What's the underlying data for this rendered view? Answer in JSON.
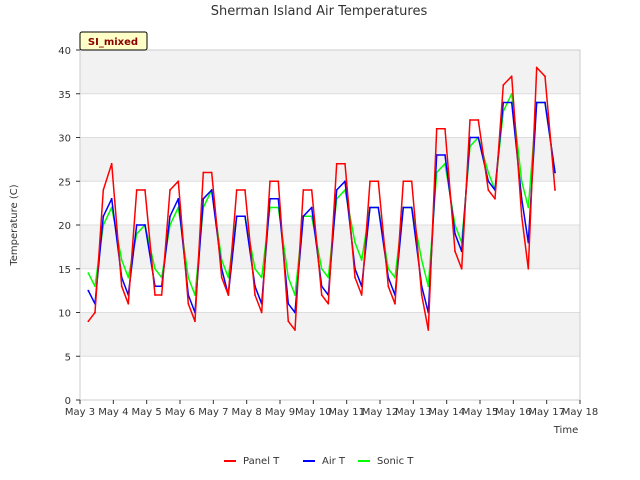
{
  "chart_data": {
    "type": "line",
    "title": "Sherman Island Air Temperatures",
    "xlabel": "Time",
    "ylabel": "Temperature (C)",
    "xlim": [
      3,
      18
    ],
    "ylim": [
      0,
      40
    ],
    "y_ticks": [
      0,
      5,
      10,
      15,
      20,
      25,
      30,
      35,
      40
    ],
    "x_ticks": [
      3,
      4,
      5,
      6,
      7,
      8,
      9,
      10,
      11,
      12,
      13,
      14,
      15,
      16,
      17,
      18
    ],
    "x_tick_labels": [
      "May 3",
      "May 4",
      "May 5",
      "May 6",
      "May 7",
      "May 8",
      "May 9",
      "May 10",
      "May 11",
      "May 12",
      "May 13",
      "May 14",
      "May 15",
      "May 16",
      "May 17",
      "May 18"
    ],
    "grid": "horizontal bands",
    "legend": "bottom-center",
    "annotation": "SI_mixed",
    "series": [
      {
        "name": "Panel T",
        "color": "#ff0000",
        "x": [
          3.25,
          3.45,
          3.7,
          3.95,
          4.25,
          4.45,
          4.7,
          4.95,
          5.25,
          5.45,
          5.7,
          5.95,
          6.25,
          6.45,
          6.7,
          6.95,
          7.25,
          7.45,
          7.7,
          7.95,
          8.25,
          8.45,
          8.7,
          8.95,
          9.25,
          9.45,
          9.7,
          9.95,
          10.25,
          10.45,
          10.7,
          10.95,
          11.25,
          11.45,
          11.7,
          11.95,
          12.25,
          12.45,
          12.7,
          12.95,
          13.25,
          13.45,
          13.7,
          13.95,
          14.25,
          14.45,
          14.7,
          14.95,
          15.25,
          15.45,
          15.7,
          15.95,
          16.25,
          16.45,
          16.7,
          16.95,
          17.25
        ],
        "values": [
          9,
          10,
          24,
          27,
          13,
          11,
          24,
          24,
          12,
          12,
          24,
          25,
          11,
          9,
          26,
          26,
          14,
          12,
          24,
          24,
          12,
          10,
          25,
          25,
          9,
          8,
          24,
          24,
          12,
          11,
          27,
          27,
          14,
          12,
          25,
          25,
          13,
          11,
          25,
          25,
          12,
          8,
          31,
          31,
          17,
          15,
          32,
          32,
          24,
          23,
          36,
          37,
          21,
          15,
          38,
          37,
          24
        ]
      },
      {
        "name": "Air T",
        "color": "#0000ff",
        "x": [
          3.25,
          3.45,
          3.7,
          3.95,
          4.25,
          4.45,
          4.7,
          4.95,
          5.25,
          5.45,
          5.7,
          5.95,
          6.25,
          6.45,
          6.7,
          6.95,
          7.25,
          7.45,
          7.7,
          7.95,
          8.25,
          8.45,
          8.7,
          8.95,
          9.25,
          9.45,
          9.7,
          9.95,
          10.25,
          10.45,
          10.7,
          10.95,
          11.25,
          11.45,
          11.7,
          11.95,
          12.25,
          12.45,
          12.7,
          12.95,
          13.25,
          13.45,
          13.7,
          13.95,
          14.25,
          14.45,
          14.7,
          14.95,
          15.25,
          15.45,
          15.7,
          15.95,
          16.25,
          16.45,
          16.7,
          16.95,
          17.25
        ],
        "values": [
          12.5,
          11,
          21,
          23,
          14,
          12,
          20,
          20,
          13,
          13,
          21,
          23,
          12,
          10,
          23,
          24,
          15,
          12,
          21,
          21,
          13,
          11,
          23,
          23,
          11,
          10,
          21,
          22,
          13,
          12,
          24,
          25,
          15,
          13,
          22,
          22,
          14,
          12,
          22,
          22,
          13,
          10,
          28,
          28,
          19,
          17,
          30,
          30,
          25,
          24,
          34,
          34,
          23,
          18,
          34,
          34,
          26
        ]
      },
      {
        "name": "Sonic T",
        "color": "#00ff00",
        "x": [
          3.25,
          3.45,
          3.7,
          3.95,
          4.25,
          4.45,
          4.7,
          4.95,
          5.25,
          5.45,
          5.7,
          5.95,
          6.25,
          6.45,
          6.7,
          6.95,
          7.25,
          7.45,
          7.7,
          7.95,
          8.25,
          8.45,
          8.7,
          8.95,
          9.25,
          9.45,
          9.7,
          9.95,
          10.25,
          10.45,
          10.7,
          10.95,
          11.25,
          11.45,
          11.7,
          11.95,
          12.25,
          12.45,
          12.7,
          12.95,
          13.25,
          13.45,
          13.7,
          13.95,
          14.25,
          14.45,
          14.7,
          14.95,
          15.25,
          15.45,
          15.7,
          15.95,
          16.25,
          16.45,
          16.7,
          16.95,
          17.25
        ],
        "values": [
          14.5,
          13,
          20,
          22,
          16,
          14,
          19,
          20,
          15,
          14,
          20,
          22,
          14,
          12,
          22,
          24,
          16,
          14,
          21,
          21,
          15,
          14,
          22,
          22,
          14,
          12,
          21,
          21,
          15,
          14,
          23,
          24,
          18,
          16,
          22,
          22,
          15,
          14,
          22,
          22,
          16,
          13,
          26,
          27,
          20,
          18,
          29,
          30,
          26,
          24,
          33,
          35,
          25,
          22,
          34,
          34,
          26
        ]
      }
    ]
  }
}
